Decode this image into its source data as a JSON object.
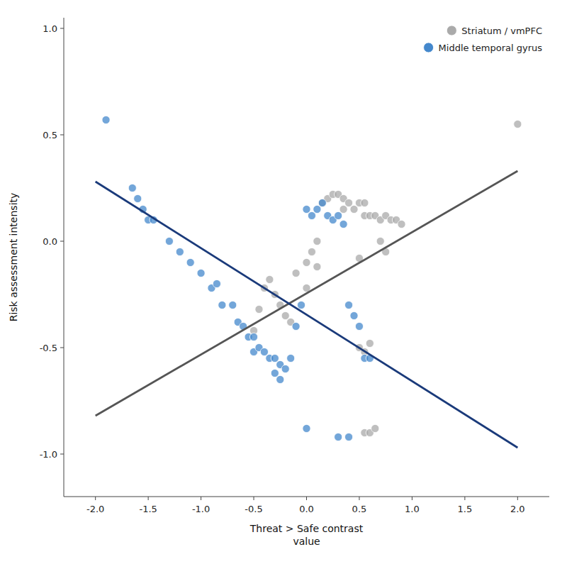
{
  "chart_data": {
    "type": "scatter",
    "xlabel": [
      "Threat > Safe contrast",
      "value"
    ],
    "ylabel": "Risk assessment intensity",
    "xlim": [
      -2.3,
      2.3
    ],
    "ylim": [
      -1.2,
      1.05
    ],
    "xticks": [
      {
        "value": -2.0,
        "label": "-2.0"
      },
      -1.5,
      {
        "value": -1.0,
        "label": "-1.0"
      },
      -0.5,
      {
        "value": 0.0,
        "label": "0.0"
      },
      0.5,
      {
        "value": 1.0,
        "label": "1.0"
      },
      1.5,
      {
        "value": 2.0,
        "label": "2.0"
      }
    ],
    "yticks": [
      {
        "value": -1.0,
        "label": "-1.0"
      },
      -0.5,
      {
        "value": 0.0,
        "label": "0.0"
      },
      0.5,
      {
        "value": 1.0,
        "label": "1.0"
      }
    ],
    "grid": false,
    "legend": "upper right",
    "series": [
      {
        "name": "Striatum / vmPFC",
        "type": "scatter",
        "marker": "circle",
        "color": "#aaaaaa",
        "x": [
          2.0,
          -0.5,
          -0.45,
          -0.4,
          -0.35,
          -0.3,
          -0.25,
          -0.2,
          -0.15,
          -0.1,
          0.0,
          0.0,
          0.05,
          0.1,
          0.1,
          0.15,
          0.2,
          0.25,
          0.3,
          0.35,
          0.35,
          0.4,
          0.45,
          0.5,
          0.5,
          0.55,
          0.55,
          0.6,
          0.65,
          0.7,
          0.7,
          0.75,
          0.75,
          0.8,
          0.85,
          0.9,
          0.5,
          0.55,
          0.6,
          0.55,
          0.6,
          0.65
        ],
        "values": [
          0.55,
          -0.42,
          -0.32,
          -0.22,
          -0.18,
          -0.25,
          -0.3,
          -0.35,
          -0.38,
          -0.15,
          -0.1,
          -0.22,
          -0.05,
          0.0,
          -0.12,
          0.18,
          0.2,
          0.22,
          0.22,
          0.2,
          0.15,
          0.18,
          0.15,
          0.18,
          -0.08,
          0.18,
          0.12,
          0.12,
          0.12,
          0.1,
          0.0,
          0.12,
          -0.05,
          0.1,
          0.1,
          0.08,
          -0.5,
          -0.52,
          -0.48,
          -0.9,
          -0.9,
          -0.88
        ]
      },
      {
        "name": "Middle temporal gyrus",
        "type": "scatter",
        "marker": "circle",
        "color": "#4488cc",
        "x": [
          -1.9,
          -1.65,
          -1.6,
          -1.55,
          -1.5,
          -1.45,
          -1.3,
          -1.2,
          -1.1,
          -1.0,
          -0.9,
          -0.85,
          -0.8,
          -0.7,
          -0.65,
          -0.6,
          -0.55,
          -0.5,
          -0.5,
          -0.45,
          -0.4,
          -0.35,
          -0.3,
          -0.3,
          -0.25,
          -0.25,
          -0.2,
          -0.15,
          -0.1,
          -0.05,
          0.0,
          0.05,
          0.1,
          0.15,
          0.2,
          0.25,
          0.3,
          0.35,
          0.4,
          0.45,
          0.5,
          0.55,
          0.6,
          0.0,
          0.3,
          0.4
        ],
        "values": [
          0.57,
          0.25,
          0.2,
          0.15,
          0.1,
          0.1,
          0.0,
          -0.05,
          -0.1,
          -0.15,
          -0.22,
          -0.2,
          -0.3,
          -0.3,
          -0.38,
          -0.4,
          -0.45,
          -0.45,
          -0.52,
          -0.5,
          -0.52,
          -0.55,
          -0.55,
          -0.62,
          -0.58,
          -0.65,
          -0.6,
          -0.55,
          -0.4,
          -0.3,
          0.15,
          0.12,
          0.15,
          0.18,
          0.12,
          0.1,
          0.12,
          0.08,
          -0.3,
          -0.35,
          -0.4,
          -0.55,
          -0.55,
          -0.88,
          -0.92,
          -0.92
        ]
      },
      {
        "type": "line",
        "line_style": "solid",
        "color": "#555555",
        "x": [
          -2.0,
          2.0
        ],
        "values": [
          -0.82,
          0.33
        ]
      },
      {
        "type": "line",
        "line_style": "solid",
        "color": "#1a3a7a",
        "x": [
          -2.0,
          2.0
        ],
        "values": [
          0.28,
          -0.97
        ]
      }
    ]
  }
}
